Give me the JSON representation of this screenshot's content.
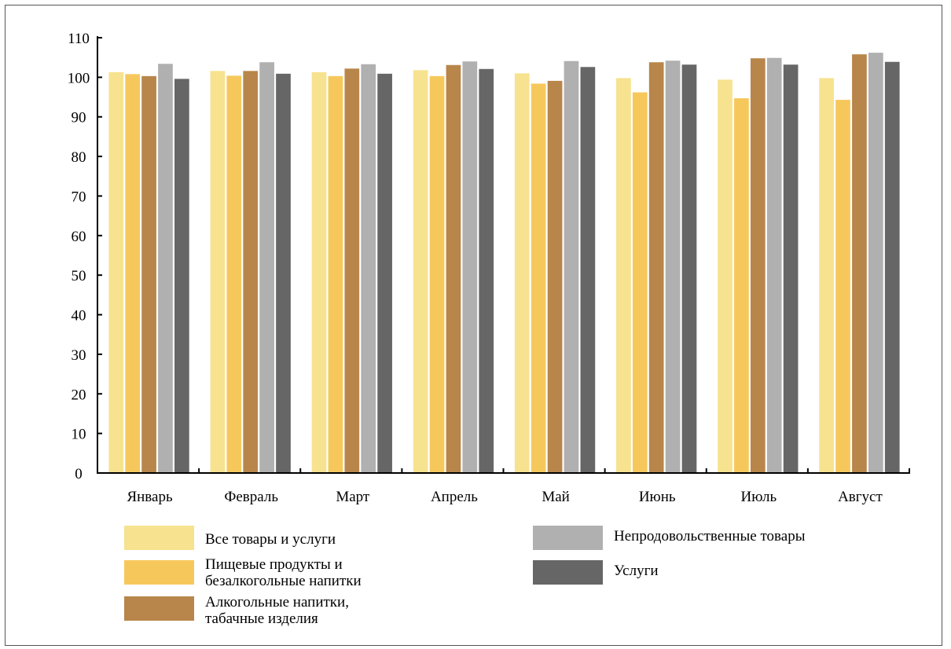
{
  "chart_data": {
    "type": "bar",
    "categories": [
      "Январь",
      "Февраль",
      "Март",
      "Апрель",
      "Май",
      "Июнь",
      "Июль",
      "Август"
    ],
    "yticks": [
      "0",
      "10",
      "20",
      "30",
      "40",
      "50",
      "60",
      "70",
      "80",
      "90",
      "100",
      "110"
    ],
    "ylim": [
      0,
      110
    ],
    "grid": false,
    "legend_position": "bottom",
    "series": [
      {
        "name": "Все товары и услуги",
        "color": "#f7e28f",
        "values": [
          101.3,
          101.6,
          101.3,
          101.8,
          101.0,
          99.8,
          99.4,
          99.8
        ]
      },
      {
        "name": "Пищевые продукты и безалкогольные напитки",
        "color": "#f6c85c",
        "values": [
          100.8,
          100.4,
          100.3,
          100.3,
          98.4,
          96.2,
          94.7,
          94.3
        ]
      },
      {
        "name": "Алкогольные напитки, табачные изделия",
        "color": "#b8864a",
        "values": [
          100.3,
          101.6,
          102.2,
          103.1,
          99.1,
          103.8,
          104.8,
          105.8
        ]
      },
      {
        "name": "Непродовольственные товары",
        "color": "#b0b0b0",
        "values": [
          103.4,
          103.8,
          103.3,
          104.0,
          104.1,
          104.2,
          104.9,
          106.2
        ]
      },
      {
        "name": "Услуги",
        "color": "#666666",
        "values": [
          99.6,
          100.9,
          100.9,
          102.1,
          102.6,
          103.2,
          103.2,
          103.9
        ]
      }
    ]
  },
  "legend": {
    "left": [
      {
        "label": "Все товары и услуги",
        "color": "#f7e28f"
      },
      {
        "label": "Пищевые продукты и безалкогольные напитки",
        "color": "#f6c85c"
      },
      {
        "label": "Алкогольные напитки, табачные изделия",
        "color": "#b8864a"
      }
    ],
    "right": [
      {
        "label": "Непродовольственные товары",
        "color": "#b0b0b0"
      },
      {
        "label": "Услуги",
        "color": "#666666"
      }
    ]
  }
}
